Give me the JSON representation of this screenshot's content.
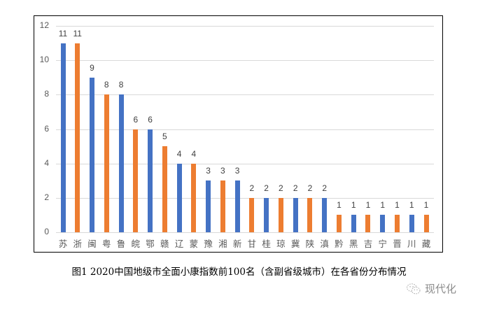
{
  "chart_data": {
    "type": "bar",
    "title": "",
    "xlabel": "",
    "ylabel": "",
    "ylim": [
      0,
      12
    ],
    "yticks": [
      0,
      2,
      4,
      6,
      8,
      10,
      12
    ],
    "grid": true,
    "legend": "none",
    "categories": [
      "苏",
      "浙",
      "闽",
      "粤",
      "鲁",
      "皖",
      "鄂",
      "赣",
      "辽",
      "蒙",
      "豫",
      "湘",
      "新",
      "甘",
      "桂",
      "琼",
      "冀",
      "陕",
      "滇",
      "黔",
      "黑",
      "吉",
      "宁",
      "晋",
      "川",
      "藏"
    ],
    "values": [
      11,
      11,
      9,
      8,
      8,
      6,
      6,
      5,
      4,
      4,
      3,
      3,
      3,
      2,
      2,
      2,
      2,
      2,
      2,
      1,
      1,
      1,
      1,
      1,
      1,
      1
    ],
    "bar_colors": [
      "#4472C4",
      "#ED7D31"
    ],
    "color_pattern": "alternating starting with blue",
    "data_labels": true
  },
  "caption": "图1 2020中国地级市全面小康指数前100名（含副省级城市）在各省份分布情况",
  "watermark": {
    "icon": "wechat-icon",
    "text": "现代化"
  }
}
